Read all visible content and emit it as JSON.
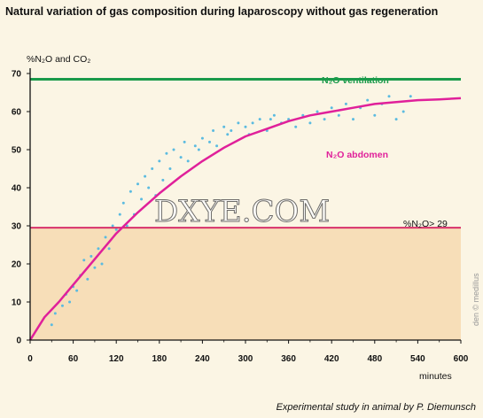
{
  "title": "Natural variation of gas composition during laparoscopy without gas regeneration",
  "footer": "Experimental study in animal by P. Diemunsch",
  "watermark": "DXYE.COM",
  "credit": "den © medillus",
  "colors": {
    "background": "#fbf5e4",
    "shaded_zone": "#f7deb8",
    "ventilation_line": "#1a9a4a",
    "abdomen_curve": "#e0209a",
    "threshold_line": "#d8306a",
    "scatter_points": "#5bbbe0"
  },
  "chart_data": {
    "type": "line",
    "title": "Natural variation of gas composition during laparoscopy without gas regeneration",
    "ylabel": "%N₂O and CO₂",
    "xlabel": "minutes",
    "xlim": [
      0,
      600
    ],
    "ylim": [
      0,
      70
    ],
    "xticks": [
      0,
      60,
      120,
      180,
      240,
      300,
      360,
      420,
      480,
      540,
      600
    ],
    "yticks": [
      0,
      10,
      20,
      30,
      40,
      50,
      60,
      70
    ],
    "grid": false,
    "annotations": [
      {
        "text": "N₂O ventilation",
        "series": "ventilation"
      },
      {
        "text": "N₂O abdomen",
        "series": "abdomen"
      },
      {
        "text": "%N₂O> 29",
        "series": "threshold"
      }
    ],
    "series": [
      {
        "name": "N₂O ventilation",
        "key": "ventilation",
        "x": [
          0,
          600
        ],
        "y": [
          68.5,
          68.5
        ]
      },
      {
        "name": "%N₂O> 29",
        "key": "threshold",
        "x": [
          0,
          600
        ],
        "y": [
          29.5,
          29.5
        ]
      },
      {
        "name": "N₂O abdomen",
        "key": "abdomen",
        "x": [
          0,
          20,
          40,
          60,
          80,
          100,
          120,
          150,
          180,
          210,
          240,
          270,
          300,
          330,
          360,
          390,
          420,
          450,
          480,
          510,
          540,
          570,
          600
        ],
        "y": [
          0,
          6,
          10,
          14.5,
          19,
          23.5,
          28,
          33.5,
          38.5,
          43,
          47,
          50.5,
          53.5,
          55.5,
          57.5,
          59,
          60,
          61,
          62,
          62.5,
          63,
          63.2,
          63.5
        ]
      }
    ],
    "scatter": {
      "x": [
        30,
        35,
        45,
        50,
        55,
        60,
        65,
        70,
        75,
        80,
        85,
        90,
        95,
        100,
        105,
        110,
        115,
        120,
        125,
        130,
        135,
        140,
        145,
        150,
        155,
        160,
        165,
        170,
        175,
        180,
        185,
        190,
        195,
        200,
        210,
        215,
        220,
        230,
        235,
        240,
        250,
        255,
        260,
        270,
        275,
        280,
        290,
        300,
        305,
        310,
        320,
        330,
        335,
        340,
        350,
        360,
        370,
        380,
        390,
        400,
        410,
        420,
        430,
        440,
        450,
        460,
        470,
        480,
        490,
        500,
        510,
        520,
        530
      ],
      "y": [
        4,
        7,
        9,
        12,
        10,
        14,
        13,
        17,
        21,
        16,
        22,
        19,
        24,
        20,
        27,
        24,
        30,
        29,
        33,
        36,
        30,
        39,
        33,
        41,
        37,
        43,
        40,
        45,
        38,
        47,
        42,
        49,
        45,
        50,
        48,
        52,
        47,
        51,
        50,
        53,
        52,
        55,
        51,
        56,
        54,
        55,
        57,
        56,
        54,
        57,
        58,
        55,
        58,
        59,
        57,
        58,
        56,
        59,
        57,
        60,
        58,
        61,
        59,
        62,
        58,
        61,
        63,
        59,
        62,
        64,
        58,
        60,
        64
      ]
    }
  }
}
